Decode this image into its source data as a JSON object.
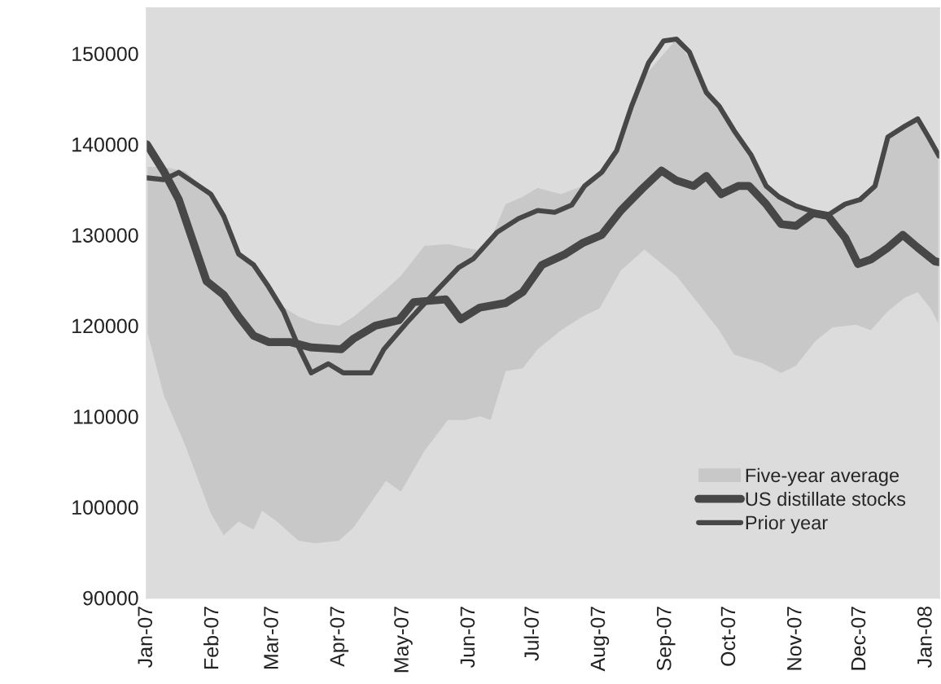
{
  "chart_data": {
    "type": "line",
    "xlim": [
      "2007-01-01",
      "2008-01-07"
    ],
    "ylim": [
      90000,
      155000
    ],
    "xticks": [
      {
        "value": "2007-01-01",
        "label": "Jan-07"
      },
      {
        "value": "2007-02-01",
        "label": "Feb-07"
      },
      {
        "value": "2007-03-01",
        "label": "Mar-07"
      },
      {
        "value": "2007-04-01",
        "label": "Apr-07"
      },
      {
        "value": "2007-05-01",
        "label": "May-07"
      },
      {
        "value": "2007-06-01",
        "label": "Jun-07"
      },
      {
        "value": "2007-07-01",
        "label": "Jul-07"
      },
      {
        "value": "2007-08-01",
        "label": "Aug-07"
      },
      {
        "value": "2007-09-01",
        "label": "Sep-07"
      },
      {
        "value": "2007-10-01",
        "label": "Oct-07"
      },
      {
        "value": "2007-11-01",
        "label": "Nov-07"
      },
      {
        "value": "2007-12-01",
        "label": "Dec-07"
      },
      {
        "value": "2008-01-01",
        "label": "Jan-08"
      }
    ],
    "yticks": [
      90000,
      100000,
      110000,
      120000,
      130000,
      140000,
      150000
    ],
    "legend": "bottom right",
    "series": [
      {
        "name": "Five-year average",
        "type": "area",
        "color": "#c8c8c8",
        "x": [
          "2007-01-01",
          "2007-01-09",
          "2007-01-19",
          "2007-01-31",
          "2007-02-06",
          "2007-02-13",
          "2007-02-20",
          "2007-02-24",
          "2007-03-03",
          "2007-03-13",
          "2007-03-21",
          "2007-04-01",
          "2007-04-08",
          "2007-04-23",
          "2007-04-30",
          "2007-05-11",
          "2007-05-22",
          "2007-05-30",
          "2007-06-06",
          "2007-06-11",
          "2007-06-18",
          "2007-06-26",
          "2007-07-03",
          "2007-07-14",
          "2007-07-24",
          "2007-08-01",
          "2007-08-11",
          "2007-08-22",
          "2007-09-06",
          "2007-09-16",
          "2007-09-26",
          "2007-10-03",
          "2007-10-16",
          "2007-10-25",
          "2007-11-01",
          "2007-11-10",
          "2007-11-18",
          "2007-11-29",
          "2007-12-06",
          "2007-12-14",
          "2007-12-22",
          "2007-12-28",
          "2008-01-03",
          "2008-01-07"
        ],
        "values": [
          null,
          null,
          null,
          null,
          null,
          null,
          null,
          null,
          null,
          null,
          null,
          null,
          null,
          null,
          null,
          null,
          null,
          null,
          null,
          null,
          null,
          null,
          null,
          null,
          null,
          null,
          null,
          null,
          null,
          null,
          null,
          null,
          null,
          null,
          null,
          null,
          null,
          null,
          null,
          null,
          null,
          null,
          null,
          null
        ],
        "lower": [
          119500,
          112300,
          106800,
          99300,
          96900,
          98400,
          97500,
          99600,
          98400,
          96300,
          96000,
          96300,
          97800,
          102900,
          101700,
          106200,
          109600,
          109600,
          110000,
          109600,
          115000,
          115300,
          117400,
          119500,
          121000,
          121900,
          126100,
          128400,
          125500,
          122500,
          119500,
          116800,
          115900,
          114800,
          115600,
          118300,
          119800,
          120100,
          119500,
          121600,
          123100,
          123700,
          121900,
          120100
        ],
        "upper": [
          137500,
          137500,
          137000,
          134500,
          132100,
          127900,
          126700,
          125000,
          122500,
          121000,
          120300,
          120000,
          121000,
          124000,
          125500,
          128800,
          129000,
          128600,
          128300,
          129500,
          133400,
          134200,
          135200,
          134500,
          135400,
          136900,
          140000,
          147500,
          151600,
          148000,
          144200,
          141500,
          136000,
          134000,
          133200,
          132500,
          132500,
          133700,
          135000,
          140800,
          142000,
          142800,
          140000,
          138700
        ]
      },
      {
        "name": "US distillate stocks",
        "color": "#474747",
        "x": [
          "2007-01-01",
          "2007-01-09",
          "2007-01-16",
          "2007-01-29",
          "2007-02-06",
          "2007-02-13",
          "2007-02-20",
          "2007-02-27",
          "2007-03-09",
          "2007-03-19",
          "2007-04-02",
          "2007-04-08",
          "2007-04-18",
          "2007-04-29",
          "2007-05-06",
          "2007-05-21",
          "2007-05-28",
          "2007-06-06",
          "2007-06-18",
          "2007-06-26",
          "2007-07-05",
          "2007-07-16",
          "2007-07-24",
          "2007-08-02",
          "2007-08-11",
          "2007-08-21",
          "2007-08-30",
          "2007-09-06",
          "2007-09-14",
          "2007-09-20",
          "2007-09-27",
          "2007-10-05",
          "2007-10-10",
          "2007-10-18",
          "2007-10-25",
          "2007-11-01",
          "2007-11-09",
          "2007-11-16",
          "2007-11-24",
          "2007-11-30",
          "2007-12-06",
          "2007-12-14",
          "2007-12-21",
          "2007-12-28",
          "2008-01-05",
          "2008-01-07"
        ],
        "values": [
          140000,
          137000,
          133900,
          124900,
          123400,
          121000,
          118900,
          118200,
          118200,
          117600,
          117400,
          118600,
          120000,
          120600,
          122600,
          122900,
          120700,
          122000,
          122500,
          123700,
          126700,
          127900,
          129100,
          130000,
          132700,
          135100,
          137100,
          136000,
          135400,
          136500,
          134500,
          135400,
          135400,
          133400,
          131200,
          131000,
          132400,
          132100,
          129700,
          126800,
          127300,
          128600,
          130000,
          128600,
          127100,
          127000
        ]
      },
      {
        "name": "Prior year",
        "color": "#474747",
        "x": [
          "2007-01-01",
          "2007-01-09",
          "2007-01-16",
          "2007-01-31",
          "2007-02-06",
          "2007-02-13",
          "2007-02-20",
          "2007-02-27",
          "2007-03-06",
          "2007-03-13",
          "2007-03-19",
          "2007-03-27",
          "2007-04-03",
          "2007-04-16",
          "2007-04-22",
          "2007-05-03",
          "2007-05-14",
          "2007-05-27",
          "2007-06-03",
          "2007-06-14",
          "2007-06-24",
          "2007-07-03",
          "2007-07-11",
          "2007-07-19",
          "2007-07-25",
          "2007-08-02",
          "2007-08-09",
          "2007-08-16",
          "2007-08-24",
          "2007-08-31",
          "2007-09-06",
          "2007-09-12",
          "2007-09-20",
          "2007-09-26",
          "2007-10-03",
          "2007-10-11",
          "2007-10-18",
          "2007-10-24",
          "2007-11-01",
          "2007-11-10",
          "2007-11-16",
          "2007-11-24",
          "2007-12-01",
          "2007-12-08",
          "2007-12-14",
          "2007-12-22",
          "2007-12-28",
          "2008-01-02",
          "2008-01-07"
        ],
        "values": [
          136300,
          136100,
          136900,
          134500,
          132100,
          127900,
          126700,
          124300,
          121600,
          117700,
          114800,
          115800,
          114800,
          114800,
          117400,
          120400,
          123200,
          126400,
          127400,
          130300,
          131800,
          132700,
          132500,
          133300,
          135400,
          136900,
          139300,
          144200,
          149000,
          151400,
          151600,
          150200,
          145700,
          144200,
          141500,
          138800,
          135400,
          134200,
          133200,
          132500,
          132200,
          133400,
          133900,
          135400,
          140800,
          142000,
          142800,
          140800,
          138700
        ]
      }
    ]
  }
}
